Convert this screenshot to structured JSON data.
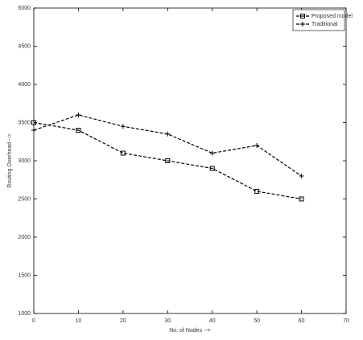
{
  "chart_data": {
    "type": "line",
    "x_label": "No. of Nodes -->",
    "y_label": "Routing Overhead -->",
    "x": [
      0,
      10,
      20,
      30,
      40,
      50,
      60
    ],
    "series": [
      {
        "name": "Proposed model",
        "color": "#000000",
        "marker": "square",
        "values": [
          3500,
          3400,
          3100,
          3000,
          2900,
          2600,
          2500
        ]
      },
      {
        "name": "Traditional",
        "color": "#000000",
        "marker": "plus",
        "values": [
          3400,
          3600,
          3450,
          3350,
          3100,
          3200,
          2800
        ]
      }
    ],
    "xlim": [
      0,
      70
    ],
    "xticks": [
      0,
      10,
      20,
      30,
      40,
      50,
      60,
      70
    ],
    "ylim": [
      1000,
      5000
    ],
    "yticks": [
      1000,
      1500,
      2000,
      2500,
      3000,
      3500,
      4000,
      4500,
      5000
    ],
    "grid": false,
    "legend": "upper right"
  }
}
